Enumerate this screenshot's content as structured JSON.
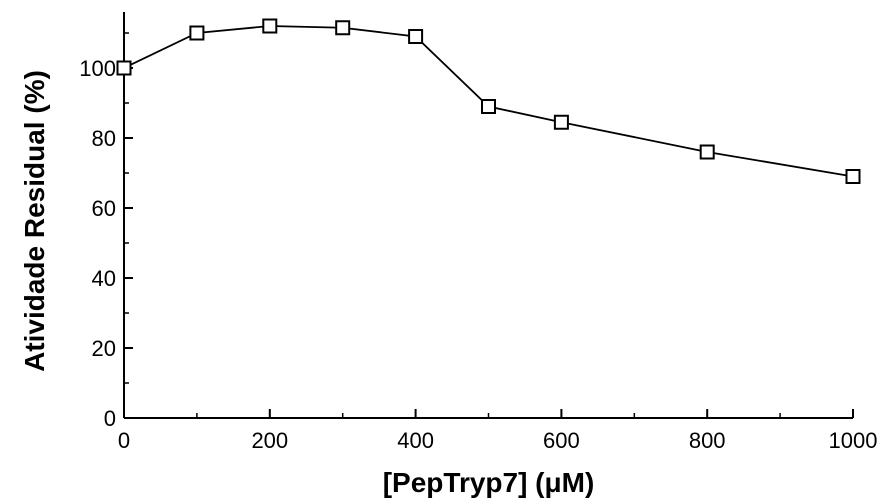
{
  "chart_data": {
    "type": "line",
    "title": "",
    "xlabel": "[PepTryp7] (μM)",
    "ylabel": "Atividade Residual (%)",
    "xlim": [
      0,
      1000
    ],
    "ylim": [
      0,
      116
    ],
    "xticks": [
      0,
      200,
      400,
      600,
      800,
      1000
    ],
    "xtick_labels": [
      "0",
      "200",
      "400",
      "600",
      "800",
      "1000"
    ],
    "yticks": [
      0,
      20,
      40,
      60,
      80,
      100
    ],
    "ytick_labels": [
      "0",
      "20",
      "40",
      "60",
      "80",
      "100"
    ],
    "grid": false,
    "series": [
      {
        "x": [
          0,
          100,
          200,
          300,
          400,
          500,
          600,
          800,
          1000
        ],
        "y": [
          100,
          110,
          112,
          111.5,
          109,
          89,
          84.5,
          76,
          69
        ],
        "marker": "open-square",
        "color": "#000000"
      }
    ]
  }
}
